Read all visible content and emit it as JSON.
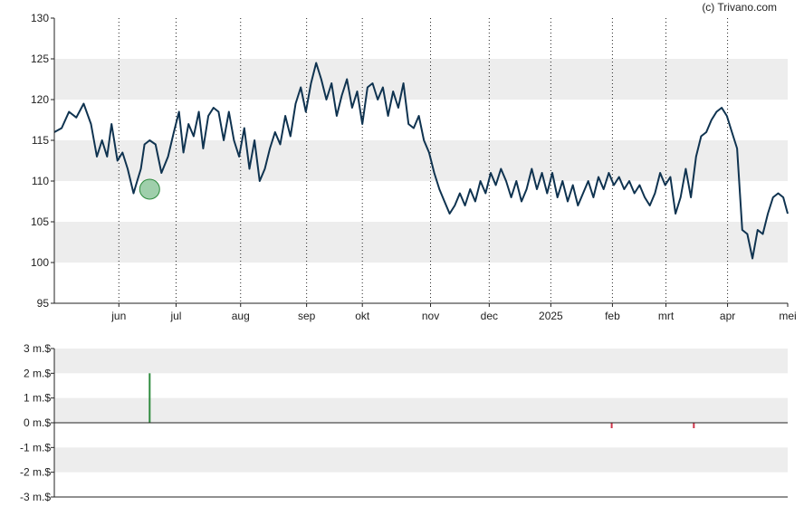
{
  "credit": "(c) Trivano.com",
  "colors": {
    "price_line": "#0f3350",
    "band": "#ededed",
    "buy": "#2e8b3e",
    "buy_marker_fill": "#7fbf8f",
    "sell": "#d0344a",
    "axis": "#222222",
    "vgrid": "#222222"
  },
  "chart_data": [
    {
      "type": "line",
      "title": "",
      "xlabel": "",
      "ylabel": "",
      "x_range": [
        0,
        1
      ],
      "ylim": [
        95,
        130
      ],
      "y_ticks": [
        "95",
        "100",
        "105",
        "110",
        "115",
        "120",
        "125",
        "130"
      ],
      "x_ticks": [
        {
          "label": "jun",
          "pos": 0.088
        },
        {
          "label": "jul",
          "pos": 0.166
        },
        {
          "label": "aug",
          "pos": 0.254
        },
        {
          "label": "sep",
          "pos": 0.344
        },
        {
          "label": "okt",
          "pos": 0.42
        },
        {
          "label": "nov",
          "pos": 0.513
        },
        {
          "label": "dec",
          "pos": 0.593
        },
        {
          "label": "2025",
          "pos": 0.677
        },
        {
          "label": "feb",
          "pos": 0.761
        },
        {
          "label": "mrt",
          "pos": 0.834
        },
        {
          "label": "apr",
          "pos": 0.918
        },
        {
          "label": "mei",
          "pos": 1.0
        }
      ],
      "grid": "horizontal bands + dotted verticals",
      "series": [
        {
          "values": [
            [
              0.0,
              116.0
            ],
            [
              0.01,
              116.5
            ],
            [
              0.02,
              118.5
            ],
            [
              0.03,
              117.8
            ],
            [
              0.04,
              119.5
            ],
            [
              0.05,
              117.0
            ],
            [
              0.058,
              113.0
            ],
            [
              0.065,
              115.0
            ],
            [
              0.072,
              113.0
            ],
            [
              0.078,
              117.0
            ],
            [
              0.086,
              112.5
            ],
            [
              0.093,
              113.5
            ],
            [
              0.1,
              111.5
            ],
            [
              0.108,
              108.5
            ],
            [
              0.113,
              110.0
            ],
            [
              0.118,
              111.5
            ],
            [
              0.123,
              114.5
            ],
            [
              0.13,
              115.0
            ],
            [
              0.138,
              114.5
            ],
            [
              0.146,
              111.0
            ],
            [
              0.155,
              113.0
            ],
            [
              0.163,
              116.0
            ],
            [
              0.17,
              118.5
            ],
            [
              0.176,
              113.5
            ],
            [
              0.183,
              117.0
            ],
            [
              0.19,
              115.5
            ],
            [
              0.197,
              118.5
            ],
            [
              0.203,
              114.0
            ],
            [
              0.21,
              118.0
            ],
            [
              0.217,
              119.0
            ],
            [
              0.224,
              118.5
            ],
            [
              0.231,
              115.0
            ],
            [
              0.238,
              118.5
            ],
            [
              0.245,
              115.0
            ],
            [
              0.252,
              113.0
            ],
            [
              0.259,
              116.5
            ],
            [
              0.266,
              111.5
            ],
            [
              0.273,
              115.0
            ],
            [
              0.28,
              110.0
            ],
            [
              0.287,
              111.5
            ],
            [
              0.294,
              114.0
            ],
            [
              0.301,
              116.0
            ],
            [
              0.308,
              114.5
            ],
            [
              0.315,
              118.0
            ],
            [
              0.322,
              115.5
            ],
            [
              0.329,
              119.5
            ],
            [
              0.336,
              121.5
            ],
            [
              0.343,
              118.5
            ],
            [
              0.35,
              122.0
            ],
            [
              0.357,
              124.5
            ],
            [
              0.364,
              122.5
            ],
            [
              0.371,
              120.0
            ],
            [
              0.378,
              122.0
            ],
            [
              0.385,
              118.0
            ],
            [
              0.392,
              120.5
            ],
            [
              0.399,
              122.5
            ],
            [
              0.406,
              119.0
            ],
            [
              0.413,
              121.0
            ],
            [
              0.42,
              117.0
            ],
            [
              0.427,
              121.5
            ],
            [
              0.434,
              122.0
            ],
            [
              0.441,
              120.0
            ],
            [
              0.448,
              121.5
            ],
            [
              0.455,
              118.0
            ],
            [
              0.462,
              121.0
            ],
            [
              0.469,
              119.0
            ],
            [
              0.476,
              122.0
            ],
            [
              0.483,
              117.0
            ],
            [
              0.49,
              116.5
            ],
            [
              0.497,
              118.0
            ],
            [
              0.504,
              115.0
            ],
            [
              0.511,
              113.5
            ],
            [
              0.518,
              111.0
            ],
            [
              0.525,
              109.0
            ],
            [
              0.532,
              107.5
            ],
            [
              0.539,
              106.0
            ],
            [
              0.546,
              107.0
            ],
            [
              0.553,
              108.5
            ],
            [
              0.56,
              107.0
            ],
            [
              0.567,
              109.0
            ],
            [
              0.574,
              107.5
            ],
            [
              0.581,
              110.0
            ],
            [
              0.588,
              108.5
            ],
            [
              0.595,
              111.0
            ],
            [
              0.602,
              109.5
            ],
            [
              0.609,
              111.5
            ],
            [
              0.616,
              110.0
            ],
            [
              0.623,
              108.0
            ],
            [
              0.63,
              110.0
            ],
            [
              0.637,
              107.5
            ],
            [
              0.644,
              109.0
            ],
            [
              0.651,
              111.5
            ],
            [
              0.658,
              109.0
            ],
            [
              0.665,
              111.0
            ],
            [
              0.672,
              108.5
            ],
            [
              0.679,
              111.0
            ],
            [
              0.686,
              108.0
            ],
            [
              0.693,
              110.0
            ],
            [
              0.7,
              107.5
            ],
            [
              0.707,
              109.5
            ],
            [
              0.714,
              107.0
            ],
            [
              0.721,
              108.5
            ],
            [
              0.728,
              110.0
            ],
            [
              0.735,
              108.0
            ],
            [
              0.742,
              110.5
            ],
            [
              0.749,
              109.0
            ],
            [
              0.756,
              111.0
            ],
            [
              0.763,
              109.5
            ],
            [
              0.77,
              110.5
            ],
            [
              0.777,
              109.0
            ],
            [
              0.784,
              110.0
            ],
            [
              0.791,
              108.5
            ],
            [
              0.798,
              109.5
            ],
            [
              0.805,
              108.0
            ],
            [
              0.812,
              107.0
            ],
            [
              0.819,
              108.5
            ],
            [
              0.826,
              111.0
            ],
            [
              0.833,
              109.5
            ],
            [
              0.84,
              110.5
            ],
            [
              0.847,
              106.0
            ],
            [
              0.854,
              108.0
            ],
            [
              0.861,
              111.5
            ],
            [
              0.868,
              108.0
            ],
            [
              0.875,
              113.0
            ],
            [
              0.882,
              115.5
            ],
            [
              0.889,
              116.0
            ],
            [
              0.896,
              117.5
            ],
            [
              0.903,
              118.5
            ],
            [
              0.91,
              119.0
            ],
            [
              0.917,
              118.0
            ],
            [
              0.924,
              116.0
            ],
            [
              0.931,
              114.0
            ],
            [
              0.938,
              104.0
            ],
            [
              0.945,
              103.5
            ],
            [
              0.952,
              100.5
            ],
            [
              0.959,
              104.0
            ],
            [
              0.966,
              103.5
            ],
            [
              0.973,
              106.0
            ],
            [
              0.98,
              108.0
            ],
            [
              0.987,
              108.5
            ],
            [
              0.994,
              108.0
            ],
            [
              1.0,
              106.0
            ]
          ]
        }
      ],
      "markers": [
        {
          "type": "buy",
          "x": 0.13,
          "y": 109.0
        }
      ]
    },
    {
      "type": "bar",
      "title": "",
      "xlabel": "",
      "ylabel": "",
      "x_range": [
        0,
        1
      ],
      "ylim": [
        -3,
        3
      ],
      "y_ticks": [
        "-3 m.$",
        "-2 m.$",
        "-1 m.$",
        "0 m.$",
        "1 m.$",
        "2 m.$",
        "3 m.$"
      ],
      "grid": "horizontal bands",
      "bars": [
        {
          "type": "buy",
          "x": 0.13,
          "value": 2.0
        },
        {
          "type": "sell",
          "x": 0.76,
          "value": -0.22
        },
        {
          "type": "sell",
          "x": 0.872,
          "value": -0.22
        }
      ]
    }
  ]
}
